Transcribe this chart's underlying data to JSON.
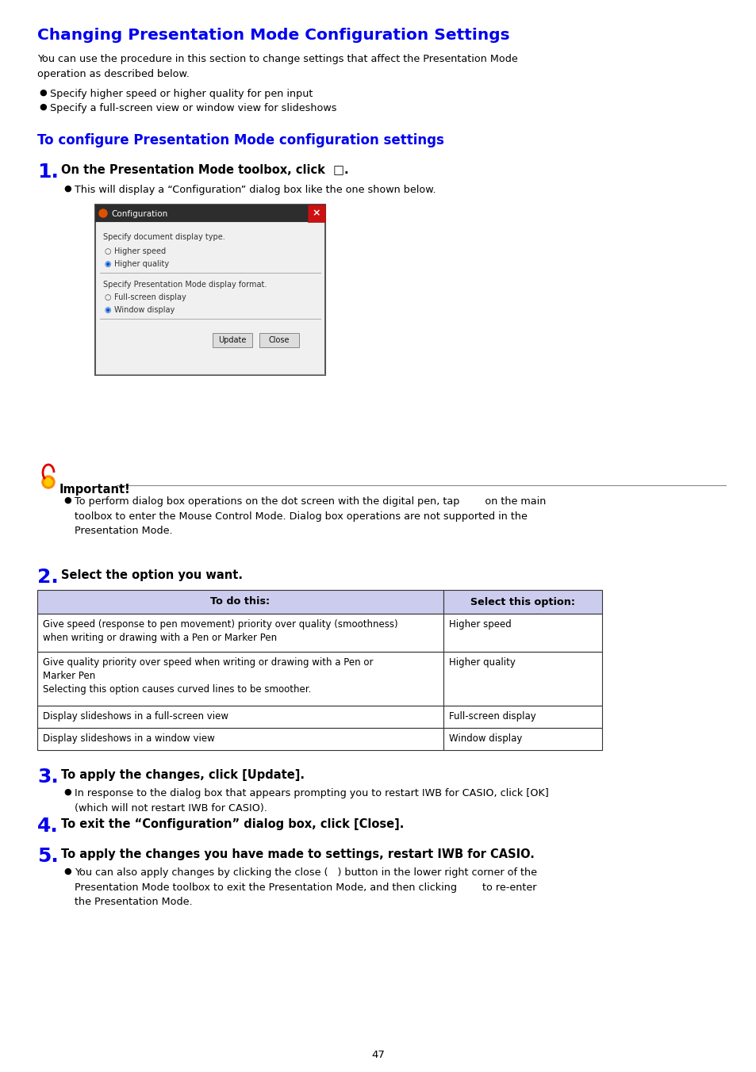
{
  "title": "Changing Presentation Mode Configuration Settings",
  "title_color": "#0000EE",
  "title_fontsize": 14.5,
  "bg_color": "#FFFFFF",
  "body_color": "#000000",
  "section_heading": "To configure Presentation Mode configuration settings",
  "section_heading_color": "#0000EE",
  "section_heading_fontsize": 12,
  "step1_number": "1.",
  "step1_number_color": "#0000EE",
  "step1_text": "On the Presentation Mode toolbox, click  □.",
  "step1_bullet": "This will display a “Configuration” dialog box like the one shown below.",
  "step2_number": "2.",
  "step2_number_color": "#0000EE",
  "step2_text": "Select the option you want.",
  "step3_number": "3.",
  "step3_number_color": "#0000EE",
  "step3_text": "To apply the changes, click [Update].",
  "step3_bullet": "In response to the dialog box that appears prompting you to restart IWB for CASIO, click [OK]\n(which will not restart IWB for CASIO).",
  "step4_number": "4.",
  "step4_number_color": "#0000EE",
  "step4_text": "To exit the “Configuration” dialog box, click [Close].",
  "step5_number": "5.",
  "step5_number_color": "#0000EE",
  "step5_text": "To apply the changes you have made to settings, restart IWB for CASIO.",
  "step5_bullet": "You can also apply changes by clicking the close (   ) button in the lower right corner of the\nPresentation Mode toolbox to exit the Presentation Mode, and then clicking        to re-enter\nthe Presentation Mode.",
  "intro_text": "You can use the procedure in this section to change settings that affect the Presentation Mode\noperation as described below.",
  "bullet1": "Specify higher speed or higher quality for pen input",
  "bullet2": "Specify a full-screen view or window view for slideshows",
  "important_text": "To perform dialog box operations on the dot screen with the digital pen, tap        on the main\ntoolbox to enter the Mouse Control Mode. Dialog box operations are not supported in the\nPresentation Mode.",
  "table_header_bg": "#CCCCEE",
  "table_header_col1": "To do this:",
  "table_header_col2": "Select this option:",
  "table_rows": [
    [
      "Give speed (response to pen movement) priority over quality (smoothness)\nwhen writing or drawing with a Pen or Marker Pen",
      "Higher speed"
    ],
    [
      "Give quality priority over speed when writing or drawing with a Pen or\nMarker Pen\nSelecting this option causes curved lines to be smoother.",
      "Higher quality"
    ],
    [
      "Display slideshows in a full-screen view",
      "Full-screen display"
    ],
    [
      "Display slideshows in a window view",
      "Window display"
    ]
  ],
  "page_number": "47"
}
